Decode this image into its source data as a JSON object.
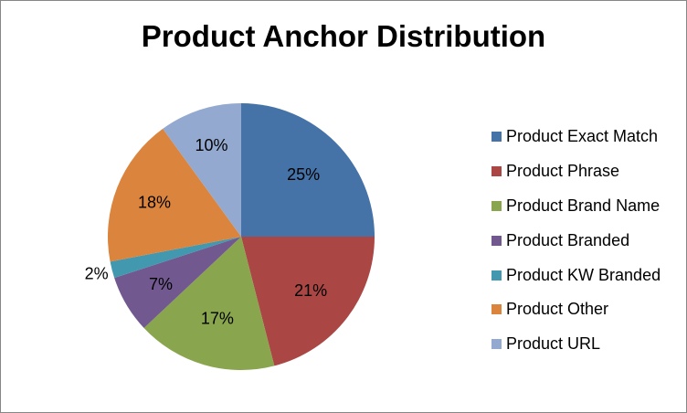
{
  "chart_data": {
    "type": "pie",
    "title": "Product Anchor Distribution",
    "categories": [
      "Product Exact Match",
      "Product Phrase",
      "Product Brand Name",
      "Product Branded",
      "Product KW Branded",
      "Product Other",
      "Product URL"
    ],
    "values": [
      25,
      21,
      17,
      7,
      2,
      18,
      10
    ],
    "value_labels": [
      "25%",
      "21%",
      "17%",
      "7%",
      "2%",
      "18%",
      "10%"
    ],
    "colors": [
      "#4572A7",
      "#AA4643",
      "#89A54E",
      "#71588F",
      "#4198AF",
      "#DB843D",
      "#93A9CF"
    ],
    "start_angle_deg": 0,
    "direction": "clockwise",
    "legend_position": "right"
  }
}
